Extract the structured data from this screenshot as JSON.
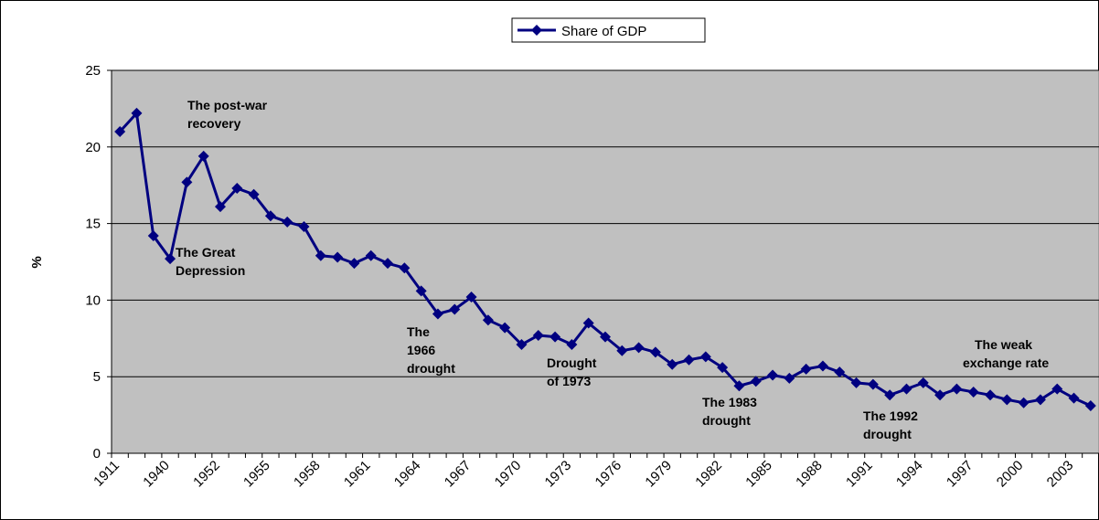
{
  "chart_data": {
    "type": "line",
    "categories": [
      "1911",
      null,
      null,
      "1940",
      null,
      null,
      "1952",
      null,
      null,
      "1955",
      null,
      null,
      "1958",
      null,
      null,
      "1961",
      null,
      null,
      "1964",
      null,
      null,
      "1967",
      null,
      null,
      "1970",
      null,
      null,
      "1973",
      null,
      null,
      "1976",
      null,
      null,
      "1979",
      null,
      null,
      "1982",
      null,
      null,
      "1985",
      null,
      null,
      "1988",
      null,
      null,
      "1991",
      null,
      null,
      "1994",
      null,
      null,
      "1997",
      null,
      null,
      "2000",
      null,
      null,
      "2003",
      null
    ],
    "series": [
      {
        "name": "Share of GDP",
        "color": "#000080",
        "values": [
          21.0,
          22.2,
          14.2,
          12.7,
          17.7,
          19.4,
          16.1,
          17.3,
          16.9,
          15.5,
          15.1,
          14.8,
          12.9,
          12.8,
          12.4,
          12.9,
          12.4,
          12.1,
          10.6,
          9.1,
          9.4,
          10.2,
          8.7,
          8.2,
          7.1,
          7.7,
          7.6,
          7.1,
          8.5,
          7.6,
          6.7,
          6.9,
          6.6,
          5.8,
          6.1,
          6.3,
          5.6,
          4.4,
          4.7,
          5.1,
          4.9,
          5.5,
          5.7,
          5.3,
          4.6,
          4.5,
          3.8,
          4.2,
          4.6,
          3.8,
          4.2,
          4.0,
          3.8,
          3.5,
          3.3,
          3.5,
          4.2,
          3.6,
          3.1
        ]
      }
    ],
    "y_label": "%",
    "ylim": [
      0,
      25
    ],
    "yticks": [
      0,
      5,
      10,
      15,
      20,
      25
    ],
    "grid": true,
    "legend": "top",
    "annotations": [
      {
        "lines": [
          "The post-war",
          "recovery"
        ]
      },
      {
        "lines": [
          "The Great",
          "Depression"
        ]
      },
      {
        "lines": [
          "The",
          "1966",
          "drought"
        ]
      },
      {
        "lines": [
          "Drought",
          "of 1973"
        ]
      },
      {
        "lines": [
          "The 1983",
          "drought"
        ]
      },
      {
        "lines": [
          "The 1992",
          "drought"
        ]
      },
      {
        "lines": [
          "The weak",
          "exchange rate"
        ]
      }
    ]
  }
}
